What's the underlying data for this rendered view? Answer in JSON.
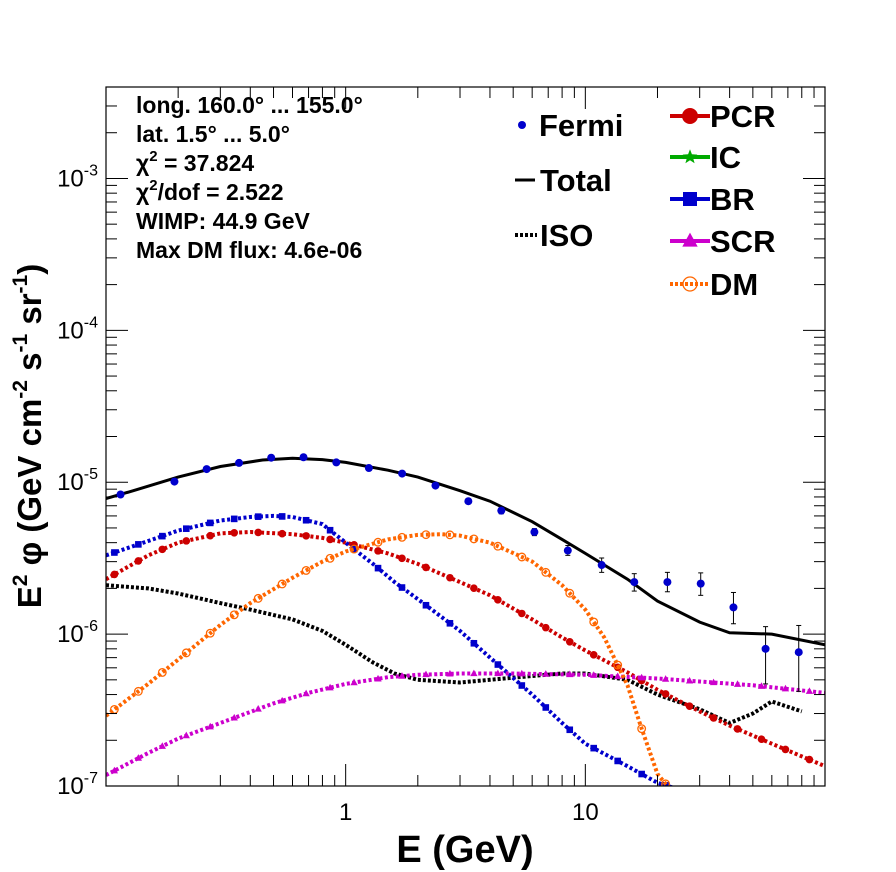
{
  "chart_data": {
    "type": "line",
    "x_scale": "log",
    "y_scale": "log",
    "xlim": [
      0.1,
      100
    ],
    "ylim": [
      1e-07,
      0.004
    ],
    "xlabel": "E (GeV)",
    "ylabel_parts": [
      "E",
      "2",
      " φ (GeV cm",
      "-2",
      " s",
      "-1",
      " sr",
      "-1",
      ")"
    ],
    "x_tick_labels": [
      {
        "x": 1,
        "label": "1"
      },
      {
        "x": 10,
        "label": "10"
      }
    ],
    "y_tick_labels": [
      {
        "y": 1e-07,
        "base": "10",
        "exp": "-7"
      },
      {
        "y": 1e-06,
        "base": "10",
        "exp": "-6"
      },
      {
        "y": 1e-05,
        "base": "10",
        "exp": "-5"
      },
      {
        "y": 0.0001,
        "base": "10",
        "exp": "-4"
      },
      {
        "y": 0.001,
        "base": "10",
        "exp": "-3"
      }
    ],
    "info_lines": [
      [
        "long. 160.0° ... 155.0°"
      ],
      [
        "lat. 1.5° ... 5.0°"
      ],
      [
        "χ",
        "2",
        " = 37.824"
      ],
      [
        "χ",
        "2",
        "/dof = 2.522"
      ],
      [
        "WIMP: 44.9 GeV"
      ],
      [
        "Max DM flux: 4.6e-06"
      ]
    ],
    "legend": [
      {
        "label": "Fermi",
        "color": "#0000cc",
        "marker": "dot"
      },
      {
        "label": "Total",
        "color": "#000000",
        "marker": "line"
      },
      {
        "label": "ISO",
        "color": "#000000",
        "marker": "dotted"
      },
      {
        "label": "PCR",
        "color": "#cc0000",
        "marker": "circle"
      },
      {
        "label": "IC",
        "color": "#00aa00",
        "marker": "star"
      },
      {
        "label": "BR",
        "color": "#0000cc",
        "marker": "square"
      },
      {
        "label": "SCR",
        "color": "#cc00cc",
        "marker": "triangle"
      },
      {
        "label": "DM",
        "color": "#ff6600",
        "marker": "open-circle"
      }
    ],
    "fermi": {
      "name": "Fermi",
      "color": "#0000cc",
      "x": [
        0.115,
        0.193,
        0.263,
        0.359,
        0.489,
        0.667,
        0.914,
        1.25,
        1.72,
        2.37,
        3.25,
        4.46,
        6.13,
        8.45,
        11.7,
        16.0,
        22.0,
        30.3,
        41.5,
        56.5,
        77.7
      ],
      "y": [
        8.3e-06,
        1.01e-05,
        1.22e-05,
        1.34e-05,
        1.45e-05,
        1.46e-05,
        1.35e-05,
        1.24e-05,
        1.14e-05,
        9.5e-06,
        7.5e-06,
        6.5e-06,
        4.7e-06,
        3.55e-06,
        2.85e-06,
        2.2e-06,
        2.2e-06,
        2.15e-06,
        1.5e-06,
        8e-07,
        7.6e-07
      ],
      "err_low": [
        3e-07,
        3e-07,
        3e-07,
        3e-07,
        3e-07,
        3e-07,
        3e-07,
        3e-07,
        3e-07,
        3e-07,
        3e-07,
        3e-07,
        2.5e-07,
        2.5e-07,
        3e-07,
        2.8e-07,
        3e-07,
        3.5e-07,
        3.3e-07,
        3.3e-07,
        3.4e-07
      ],
      "err_high": [
        3e-07,
        3e-07,
        3e-07,
        3e-07,
        3e-07,
        3e-07,
        3e-07,
        3e-07,
        3e-07,
        3e-07,
        3e-07,
        3e-07,
        2.5e-07,
        2.8e-07,
        3.2e-07,
        3e-07,
        3.5e-07,
        3.8e-07,
        3.8e-07,
        3.2e-07,
        3.8e-07
      ]
    },
    "series": [
      {
        "name": "Total",
        "color": "#000000",
        "style": "solid",
        "x": [
          0.1,
          0.13,
          0.2,
          0.3,
          0.45,
          0.6,
          0.8,
          1.0,
          1.5,
          2.0,
          3.0,
          4.0,
          6.0,
          8.0,
          10.0,
          15.0,
          20.0,
          30.0,
          40.0,
          60.0,
          100.0
        ],
        "y": [
          7.8e-06,
          8.8e-06,
          1.08e-05,
          1.27e-05,
          1.4e-05,
          1.44e-05,
          1.41e-05,
          1.35e-05,
          1.2e-05,
          1.08e-05,
          8.8e-06,
          7.5e-06,
          5.5e-06,
          4.2e-06,
          3.4e-06,
          2.3e-06,
          1.65e-06,
          1.2e-06,
          1.02e-06,
          1e-06,
          8.5e-07
        ]
      },
      {
        "name": "ISO",
        "color": "#000000",
        "style": "dotted",
        "x": [
          0.1,
          0.15,
          0.2,
          0.3,
          0.4,
          0.6,
          0.8,
          1.0,
          1.3,
          1.6,
          2.0,
          3.0,
          4.0,
          6.0,
          8.0,
          10.0,
          15.0,
          20.0,
          30.0,
          40.0,
          50.0,
          60.0,
          80.0
        ],
        "y": [
          2.1e-06,
          2e-06,
          1.85e-06,
          1.6e-06,
          1.45e-06,
          1.25e-06,
          1.05e-06,
          8.5e-07,
          6.5e-07,
          5.5e-07,
          5e-07,
          4.8e-07,
          5e-07,
          5.3e-07,
          5.5e-07,
          5.5e-07,
          5e-07,
          4e-07,
          3.2e-07,
          2.6e-07,
          3e-07,
          3.6e-07,
          3.1e-07
        ]
      },
      {
        "name": "PCR",
        "color": "#cc0000",
        "style": "circle",
        "x": [
          0.1,
          0.15,
          0.2,
          0.3,
          0.4,
          0.6,
          0.8,
          1.0,
          1.5,
          2.0,
          3.0,
          4.0,
          6.0,
          8.0,
          10.0,
          15.0,
          20.0,
          30.0,
          40.0,
          60.0,
          100.0
        ],
        "y": [
          2.3e-06,
          3.3e-06,
          4e-06,
          4.6e-06,
          4.7e-06,
          4.55e-06,
          4.3e-06,
          4e-06,
          3.4e-06,
          2.9e-06,
          2.2e-06,
          1.8e-06,
          1.25e-06,
          9.5e-07,
          7.8e-07,
          5.6e-07,
          4.3e-07,
          3.1e-07,
          2.5e-07,
          1.9e-07,
          1.35e-07
        ]
      },
      {
        "name": "BR",
        "color": "#0000cc",
        "style": "square",
        "x": [
          0.1,
          0.15,
          0.2,
          0.3,
          0.4,
          0.5,
          0.6,
          0.8,
          1.0,
          1.3,
          1.6,
          2.0,
          3.0,
          4.0,
          6.0,
          8.0,
          10.0,
          15.0,
          20.0,
          23.0
        ],
        "y": [
          3.3e-06,
          4.1e-06,
          4.8e-06,
          5.6e-06,
          5.9e-06,
          6e-06,
          5.9e-06,
          5.3e-06,
          4e-06,
          2.9e-06,
          2.2e-06,
          1.7e-06,
          1.05e-06,
          7e-07,
          4e-07,
          2.6e-07,
          1.9e-07,
          1.35e-07,
          1.05e-07,
          9.8e-08
        ]
      },
      {
        "name": "SCR",
        "color": "#cc00cc",
        "style": "triangle",
        "x": [
          0.1,
          0.15,
          0.2,
          0.3,
          0.5,
          0.7,
          1.0,
          1.5,
          2.0,
          3.0,
          5.0,
          10.0,
          20.0,
          50.0,
          100.0
        ],
        "y": [
          1.18e-07,
          1.65e-07,
          2.05e-07,
          2.6e-07,
          3.5e-07,
          4.1e-07,
          4.7e-07,
          5.2e-07,
          5.4e-07,
          5.5e-07,
          5.5e-07,
          5.4e-07,
          5.1e-07,
          4.6e-07,
          4.1e-07
        ]
      },
      {
        "name": "DM",
        "color": "#ff6600",
        "style": "open-circle",
        "x": [
          0.1,
          0.15,
          0.2,
          0.3,
          0.4,
          0.6,
          0.8,
          1.0,
          1.5,
          2.0,
          2.5,
          3.0,
          4.0,
          6.0,
          8.0,
          10.0,
          12.0,
          15.0,
          17.0,
          20.0,
          22.0
        ],
        "y": [
          2.9e-07,
          4.7e-07,
          6.8e-07,
          1.15e-06,
          1.6e-06,
          2.35e-06,
          3e-06,
          3.5e-06,
          4.2e-06,
          4.5e-06,
          4.55e-06,
          4.45e-06,
          4e-06,
          3e-06,
          2.1e-06,
          1.45e-06,
          9.5e-07,
          4.6e-07,
          2.5e-07,
          1.2e-07,
          1e-07
        ]
      }
    ]
  }
}
